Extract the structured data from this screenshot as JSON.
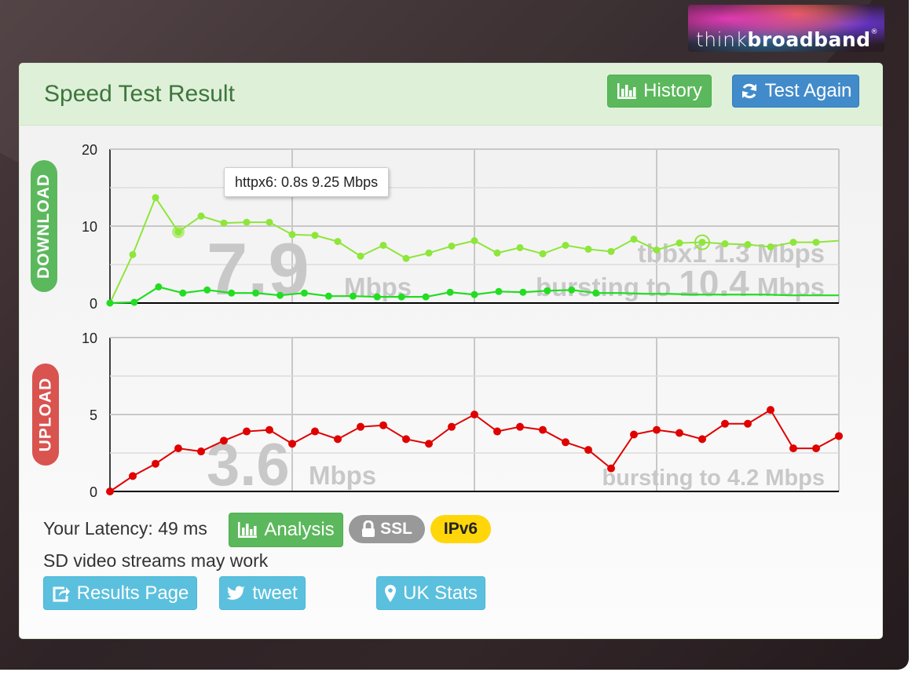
{
  "logo": {
    "think": "think",
    "broadband": "broadband",
    "reg": "®"
  },
  "header": {
    "title": "Speed Test Result",
    "history_label": "History",
    "test_again_label": "Test Again"
  },
  "download": {
    "side_label": "DOWNLOAD",
    "big_value": "7.9",
    "unit": "Mbps",
    "secondary_line": "tbbx1 1.3 Mbps",
    "burst_prefix": "bursting to",
    "burst_value": "10.4",
    "burst_unit": "Mbps",
    "tooltip": "httpx6: 0.8s 9.25 Mbps"
  },
  "upload": {
    "side_label": "UPLOAD",
    "big_value": "3.6",
    "unit": "Mbps",
    "burst_text": "bursting to 4.2 Mbps"
  },
  "footer": {
    "latency_text": "Your Latency: 49 ms",
    "analysis_label": "Analysis",
    "ssl_label": "SSL",
    "ipv6_label": "IPv6",
    "stream_text": "SD video streams may work",
    "results_page_label": "Results Page",
    "tweet_label": "tweet",
    "uk_stats_label": "UK Stats"
  },
  "colors": {
    "httpx6": "#8ee63a",
    "tbbx1": "#22dd22",
    "upload": "#e00000",
    "success": "#5cb85c",
    "primary": "#428bca",
    "info": "#5bc0de",
    "danger": "#d9534f",
    "ipv6": "#ffd60a"
  },
  "chart_data": [
    {
      "type": "line",
      "ylim": [
        0,
        20
      ],
      "yticks": [
        "0",
        "10",
        "20"
      ],
      "grid": true,
      "series": [
        {
          "name": "httpx6",
          "values": [
            0,
            6.3,
            13.7,
            9.25,
            11.3,
            10.4,
            10.5,
            10.5,
            8.9,
            8.8,
            8.0,
            6.1,
            7.5,
            5.8,
            6.5,
            7.4,
            8.1,
            6.5,
            7.2,
            6.4,
            7.5,
            7.0,
            6.7,
            8.3,
            6.9,
            7.8,
            7.9,
            7.7,
            7.6,
            7.3,
            7.9,
            7.9,
            8.1
          ],
          "marker_count": 32
        },
        {
          "name": "tbbx1",
          "values": [
            0,
            0.1,
            2.1,
            1.3,
            1.7,
            1.3,
            1.3,
            1.0,
            1.3,
            0.9,
            0.9,
            0.8,
            0.8,
            0.8,
            1.4,
            1.1,
            1.5,
            1.4,
            1.6,
            1.7,
            1.3,
            1.3,
            1.2,
            1.2,
            1.1,
            1.1,
            1.1,
            1.1,
            1.0,
            1.0,
            1.0
          ],
          "marker_count": 21
        }
      ]
    },
    {
      "type": "line",
      "ylim": [
        0,
        10
      ],
      "yticks": [
        "0",
        "5",
        "10"
      ],
      "grid": true,
      "series": [
        {
          "name": "upload",
          "values": [
            0,
            1.0,
            1.8,
            2.8,
            2.6,
            3.3,
            3.9,
            4.0,
            3.1,
            3.9,
            3.4,
            4.2,
            4.3,
            3.4,
            3.1,
            4.2,
            5.0,
            3.9,
            4.2,
            4.0,
            3.2,
            2.7,
            1.5,
            3.7,
            4.0,
            3.8,
            3.4,
            4.4,
            4.4,
            5.3,
            2.8,
            2.8,
            3.6
          ]
        }
      ]
    }
  ]
}
